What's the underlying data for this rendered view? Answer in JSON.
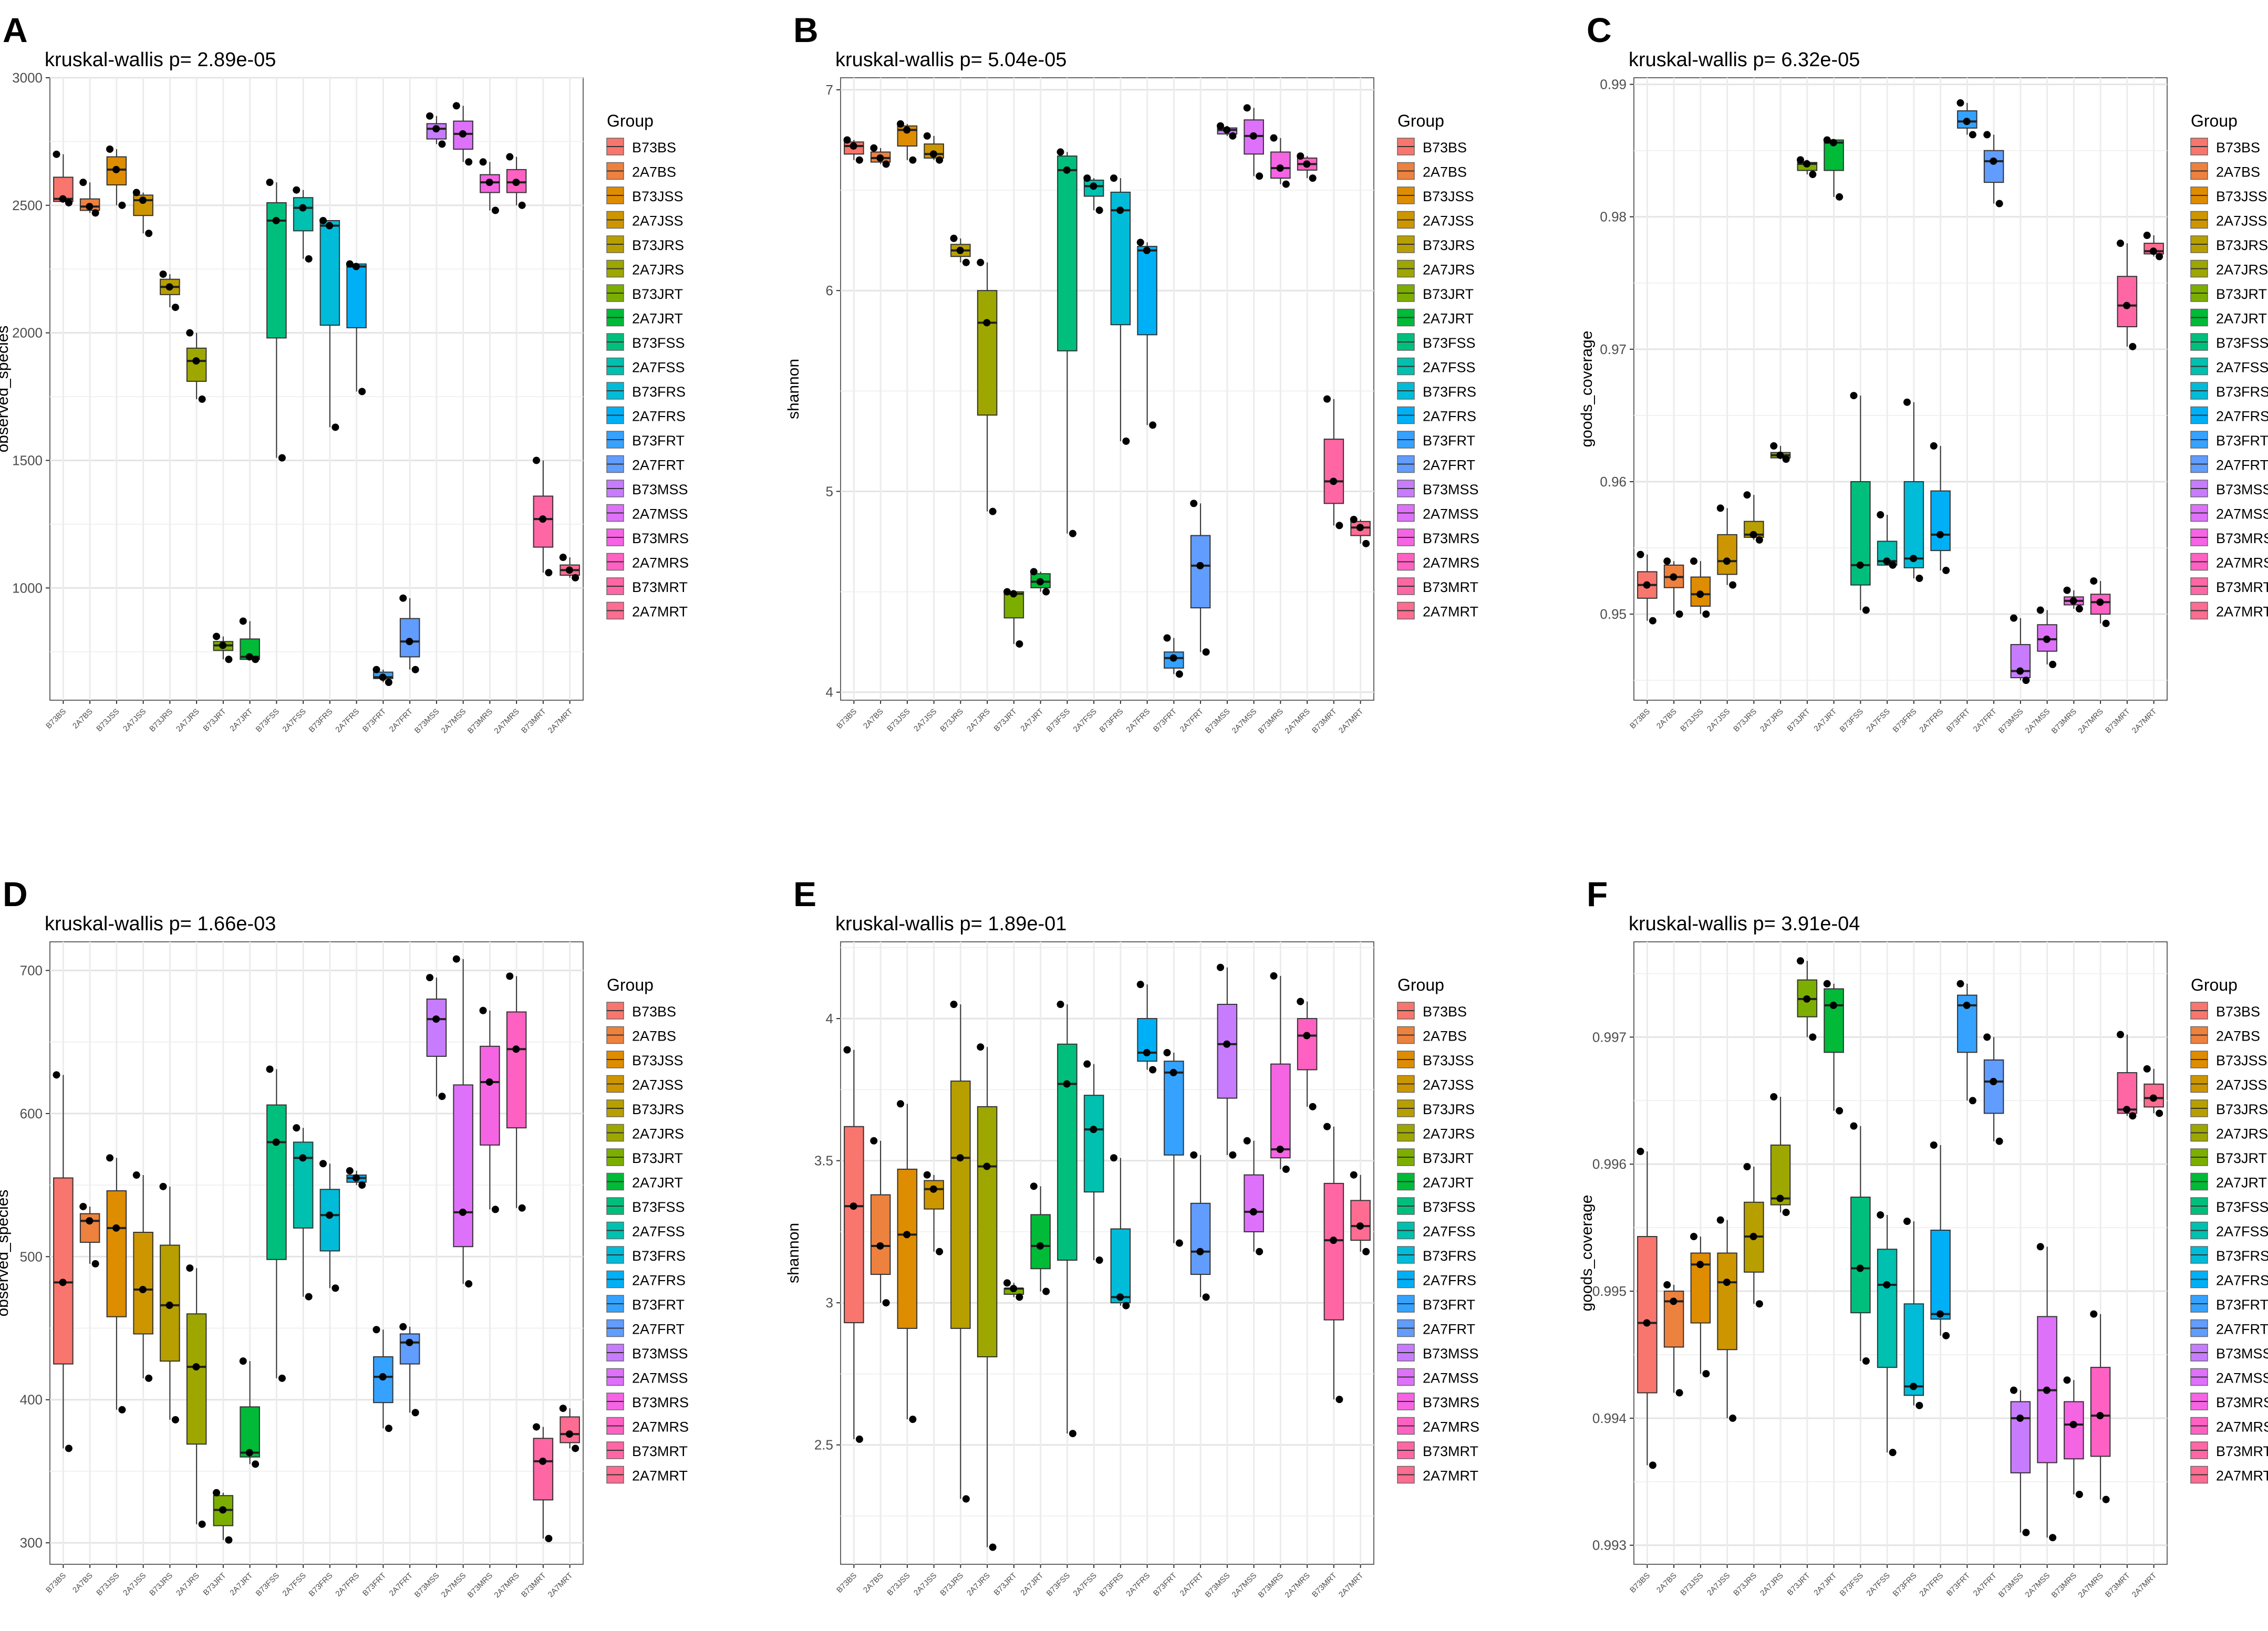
{
  "figure": {
    "group_legend_title": "Group",
    "colors": [
      "#F8766D",
      "#ED813E",
      "#DE8C00",
      "#CD9600",
      "#B79F00",
      "#9DA700",
      "#7CAE00",
      "#00BA38",
      "#00BF7D",
      "#00C0AF",
      "#00BCD8",
      "#00B0F6",
      "#35A2FF",
      "#619CFF",
      "#C77CFF",
      "#DE71F9",
      "#F564E3",
      "#FF61C3",
      "#FF67A4",
      "#FF6C91"
    ],
    "groups": [
      "B73BS",
      "2A7BS",
      "B73JSS",
      "2A7JSS",
      "B73JRS",
      "2A7JRS",
      "B73JRT",
      "2A7JRT",
      "B73FSS",
      "2A7FSS",
      "B73FRS",
      "2A7FRS",
      "B73FRT",
      "2A7FRT",
      "B73MSS",
      "2A7MSS",
      "B73MRS",
      "2A7MRS",
      "B73MRT",
      "2A7MRT"
    ]
  },
  "chart_data": [
    {
      "panel": "A",
      "type": "boxplot",
      "title": "kruskal-wallis  p= 2.89e-05",
      "xlabel": "",
      "ylabel": "observed_species",
      "ylim": [
        560,
        3000
      ],
      "yticks": [
        1000,
        1500,
        2000,
        2500,
        3000
      ],
      "boxes": [
        [
          2510,
          2515,
          2525,
          2610,
          2700
        ],
        [
          2470,
          2480,
          2495,
          2525,
          2590
        ],
        [
          2500,
          2580,
          2640,
          2690,
          2720
        ],
        [
          2390,
          2460,
          2520,
          2540,
          2550
        ],
        [
          2100,
          2150,
          2180,
          2210,
          2230
        ],
        [
          1740,
          1810,
          1890,
          1940,
          2000
        ],
        [
          720,
          755,
          775,
          790,
          810
        ],
        [
          720,
          720,
          730,
          800,
          870
        ],
        [
          1510,
          1980,
          2440,
          2510,
          2590
        ],
        [
          2290,
          2400,
          2490,
          2530,
          2560
        ],
        [
          1630,
          2030,
          2420,
          2440,
          2440
        ],
        [
          1770,
          2020,
          2260,
          2270,
          2270
        ],
        [
          630,
          645,
          650,
          670,
          680
        ],
        [
          680,
          730,
          790,
          880,
          960
        ],
        [
          2740,
          2760,
          2800,
          2820,
          2850
        ],
        [
          2670,
          2720,
          2780,
          2830,
          2890
        ],
        [
          2480,
          2550,
          2590,
          2620,
          2670
        ],
        [
          2500,
          2550,
          2590,
          2640,
          2690
        ],
        [
          1060,
          1160,
          1270,
          1360,
          1500
        ],
        [
          1040,
          1050,
          1070,
          1090,
          1120
        ]
      ]
    },
    {
      "panel": "B",
      "type": "boxplot",
      "title": "kruskal-wallis  p= 5.04e-05",
      "xlabel": "",
      "ylabel": "shannon",
      "ylim": [
        3.96,
        7.06
      ],
      "yticks": [
        4,
        5,
        6,
        7
      ],
      "boxes": [
        [
          6.65,
          6.68,
          6.72,
          6.74,
          6.75
        ],
        [
          6.63,
          6.64,
          6.66,
          6.69,
          6.71
        ],
        [
          6.65,
          6.72,
          6.8,
          6.82,
          6.83
        ],
        [
          6.65,
          6.66,
          6.68,
          6.73,
          6.77
        ],
        [
          6.14,
          6.17,
          6.2,
          6.23,
          6.26
        ],
        [
          4.9,
          5.38,
          5.84,
          6.0,
          6.14
        ],
        [
          4.24,
          4.37,
          4.49,
          4.5,
          4.5
        ],
        [
          4.5,
          4.52,
          4.55,
          4.59,
          4.6
        ],
        [
          4.79,
          5.7,
          6.6,
          6.67,
          6.69
        ],
        [
          6.4,
          6.47,
          6.52,
          6.55,
          6.56
        ],
        [
          5.25,
          5.83,
          6.4,
          6.49,
          6.56
        ],
        [
          5.33,
          5.78,
          6.2,
          6.22,
          6.24
        ],
        [
          4.09,
          4.12,
          4.17,
          4.2,
          4.27
        ],
        [
          4.2,
          4.42,
          4.63,
          4.78,
          4.94
        ],
        [
          6.77,
          6.78,
          6.8,
          6.81,
          6.82
        ],
        [
          6.57,
          6.68,
          6.77,
          6.85,
          6.91
        ],
        [
          6.53,
          6.56,
          6.61,
          6.69,
          6.76
        ],
        [
          6.56,
          6.6,
          6.63,
          6.66,
          6.67
        ],
        [
          4.83,
          4.94,
          5.05,
          5.26,
          5.46
        ],
        [
          4.74,
          4.78,
          4.82,
          4.85,
          4.86
        ]
      ]
    },
    {
      "panel": "C",
      "type": "boxplot",
      "title": "kruskal-wallis  p= 6.32e-05",
      "xlabel": "",
      "ylabel": "goods_coverage",
      "ylim": [
        0.9435,
        0.9905
      ],
      "yticks": [
        0.95,
        0.96,
        0.97,
        0.98,
        0.99
      ],
      "boxes": [
        [
          0.9495,
          0.9512,
          0.9522,
          0.9532,
          0.9545
        ],
        [
          0.95,
          0.952,
          0.9528,
          0.9537,
          0.954
        ],
        [
          0.95,
          0.9506,
          0.9515,
          0.9528,
          0.954
        ],
        [
          0.9522,
          0.953,
          0.954,
          0.956,
          0.958
        ],
        [
          0.9556,
          0.9558,
          0.956,
          0.957,
          0.959
        ],
        [
          0.9617,
          0.9618,
          0.962,
          0.9622,
          0.9627
        ],
        [
          0.9832,
          0.9835,
          0.984,
          0.9841,
          0.9843
        ],
        [
          0.9815,
          0.9835,
          0.9856,
          0.9858,
          0.9858
        ],
        [
          0.9503,
          0.9522,
          0.9537,
          0.96,
          0.9665
        ],
        [
          0.9537,
          0.9537,
          0.954,
          0.9555,
          0.9575
        ],
        [
          0.9527,
          0.9535,
          0.9542,
          0.96,
          0.966
        ],
        [
          0.9533,
          0.9548,
          0.956,
          0.9593,
          0.9627
        ],
        [
          0.9862,
          0.9867,
          0.9872,
          0.988,
          0.9886
        ],
        [
          0.981,
          0.9826,
          0.9842,
          0.985,
          0.9862
        ],
        [
          0.945,
          0.9452,
          0.9457,
          0.9477,
          0.9497
        ],
        [
          0.9462,
          0.9472,
          0.9481,
          0.9492,
          0.9503
        ],
        [
          0.9504,
          0.9507,
          0.951,
          0.9513,
          0.9518
        ],
        [
          0.9493,
          0.95,
          0.9509,
          0.9515,
          0.9525
        ],
        [
          0.9702,
          0.9717,
          0.9733,
          0.9755,
          0.978
        ],
        [
          0.977,
          0.9772,
          0.9774,
          0.978,
          0.9786
        ]
      ]
    },
    {
      "panel": "D",
      "type": "boxplot",
      "title": "kruskal-wallis  p= 1.66e-03",
      "xlabel": "",
      "ylabel": "observed_species",
      "ylim": [
        285,
        720
      ],
      "yticks": [
        300,
        400,
        500,
        600,
        700
      ],
      "boxes": [
        [
          366,
          425,
          482,
          555,
          627
        ],
        [
          495,
          510,
          525,
          530,
          535
        ],
        [
          393,
          458,
          520,
          546,
          569
        ],
        [
          415,
          446,
          477,
          517,
          557
        ],
        [
          386,
          427,
          466,
          508,
          549
        ],
        [
          313,
          369,
          423,
          460,
          492
        ],
        [
          302,
          312,
          323,
          333,
          335
        ],
        [
          355,
          360,
          363,
          395,
          427
        ],
        [
          415,
          498,
          580,
          606,
          631
        ],
        [
          472,
          520,
          569,
          580,
          590
        ],
        [
          478,
          504,
          529,
          547,
          565
        ],
        [
          550,
          552,
          555,
          557,
          560
        ],
        [
          380,
          398,
          416,
          430,
          449
        ],
        [
          391,
          425,
          440,
          446,
          451
        ],
        [
          612,
          640,
          666,
          680,
          695
        ],
        [
          481,
          507,
          531,
          620,
          708
        ],
        [
          533,
          578,
          622,
          647,
          672
        ],
        [
          534,
          590,
          645,
          671,
          696
        ],
        [
          303,
          330,
          357,
          373,
          381
        ],
        [
          366,
          370,
          376,
          388,
          394
        ]
      ]
    },
    {
      "panel": "E",
      "type": "boxplot",
      "title": "kruskal-wallis  p= 1.89e-01",
      "xlabel": "",
      "ylabel": "shannon",
      "ylim": [
        2.08,
        4.27
      ],
      "yticks": [
        2.5,
        3.0,
        3.5,
        4.0
      ],
      "boxes": [
        [
          2.52,
          2.93,
          3.34,
          3.62,
          3.89
        ],
        [
          3.0,
          3.1,
          3.2,
          3.38,
          3.57
        ],
        [
          2.59,
          2.91,
          3.24,
          3.47,
          3.7
        ],
        [
          3.18,
          3.33,
          3.4,
          3.43,
          3.45
        ],
        [
          2.31,
          2.91,
          3.51,
          3.78,
          4.05
        ],
        [
          2.14,
          2.81,
          3.48,
          3.69,
          3.9
        ],
        [
          3.02,
          3.03,
          3.05,
          3.05,
          3.07
        ],
        [
          3.04,
          3.12,
          3.2,
          3.31,
          3.41
        ],
        [
          2.54,
          3.15,
          3.77,
          3.91,
          4.05
        ],
        [
          3.15,
          3.39,
          3.61,
          3.73,
          3.84
        ],
        [
          2.99,
          3.0,
          3.02,
          3.26,
          3.51
        ],
        [
          3.82,
          3.85,
          3.88,
          4.0,
          4.12
        ],
        [
          3.21,
          3.52,
          3.81,
          3.85,
          3.88
        ],
        [
          3.02,
          3.1,
          3.18,
          3.35,
          3.52
        ],
        [
          3.52,
          3.72,
          3.91,
          4.05,
          4.18
        ],
        [
          3.18,
          3.25,
          3.32,
          3.45,
          3.57
        ],
        [
          3.47,
          3.51,
          3.54,
          3.84,
          4.15
        ],
        [
          3.69,
          3.82,
          3.94,
          4.0,
          4.06
        ],
        [
          2.66,
          2.94,
          3.22,
          3.42,
          3.62
        ],
        [
          3.18,
          3.22,
          3.27,
          3.36,
          3.45
        ]
      ]
    },
    {
      "panel": "F",
      "type": "boxplot",
      "title": "kruskal-wallis  p= 3.91e-04",
      "xlabel": "",
      "ylabel": "goods_coverage",
      "ylim": [
        0.99285,
        0.99775
      ],
      "yticks": [
        0.993,
        0.994,
        0.995,
        0.996,
        0.997
      ],
      "boxes": [
        [
          0.99363,
          0.9942,
          0.99475,
          0.99543,
          0.9961
        ],
        [
          0.9942,
          0.99456,
          0.99492,
          0.995,
          0.99505
        ],
        [
          0.99435,
          0.99475,
          0.99521,
          0.9953,
          0.99543
        ],
        [
          0.994,
          0.99454,
          0.99507,
          0.9953,
          0.99556
        ],
        [
          0.9949,
          0.99515,
          0.99543,
          0.9957,
          0.99598
        ],
        [
          0.99562,
          0.99568,
          0.99573,
          0.99615,
          0.99653
        ],
        [
          0.997,
          0.99716,
          0.9973,
          0.99745,
          0.9976
        ],
        [
          0.99642,
          0.99688,
          0.99725,
          0.99738,
          0.99742
        ],
        [
          0.99445,
          0.99483,
          0.99518,
          0.99574,
          0.9963
        ],
        [
          0.99373,
          0.9944,
          0.99505,
          0.99533,
          0.9956
        ],
        [
          0.9941,
          0.99418,
          0.99425,
          0.9949,
          0.99555
        ],
        [
          0.99465,
          0.99478,
          0.99482,
          0.99548,
          0.99615
        ],
        [
          0.9965,
          0.99688,
          0.99725,
          0.99733,
          0.99742
        ],
        [
          0.99618,
          0.9964,
          0.99665,
          0.99682,
          0.997
        ],
        [
          0.9931,
          0.99357,
          0.994,
          0.99413,
          0.99422
        ],
        [
          0.99306,
          0.99365,
          0.99422,
          0.9948,
          0.99535
        ],
        [
          0.9934,
          0.99368,
          0.99395,
          0.99413,
          0.9943
        ],
        [
          0.99336,
          0.9937,
          0.99402,
          0.9944,
          0.99482
        ],
        [
          0.99638,
          0.9964,
          0.99643,
          0.99672,
          0.99702
        ],
        [
          0.9964,
          0.99645,
          0.99652,
          0.99663,
          0.99675
        ]
      ]
    }
  ]
}
